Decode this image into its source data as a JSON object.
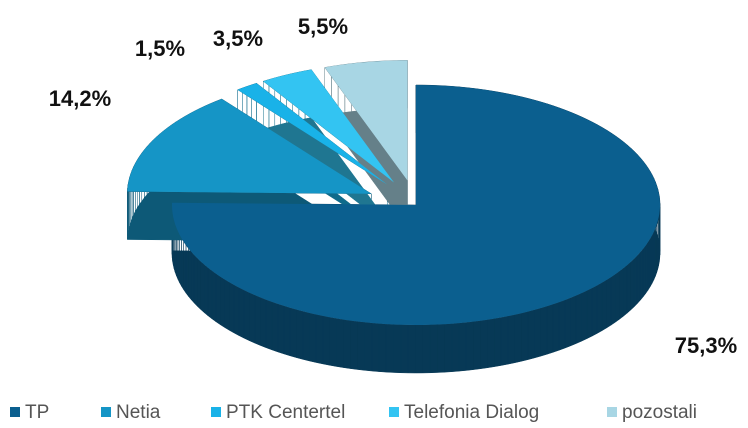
{
  "chart_data": {
    "type": "pie3d",
    "categories": [
      "TP",
      "Netia",
      "PTK Centertel",
      "Telefonia Dialog",
      "pozostali"
    ],
    "values": [
      75.3,
      14.2,
      1.5,
      3.5,
      5.5
    ],
    "value_labels": [
      "75,3%",
      "14,2%",
      "1,5%",
      "3,5%",
      "5,5%"
    ],
    "colors": [
      "#0b5f8f",
      "#1595c6",
      "#19b2e8",
      "#33c4f2",
      "#a8d6e4"
    ],
    "legend": "bottom"
  }
}
